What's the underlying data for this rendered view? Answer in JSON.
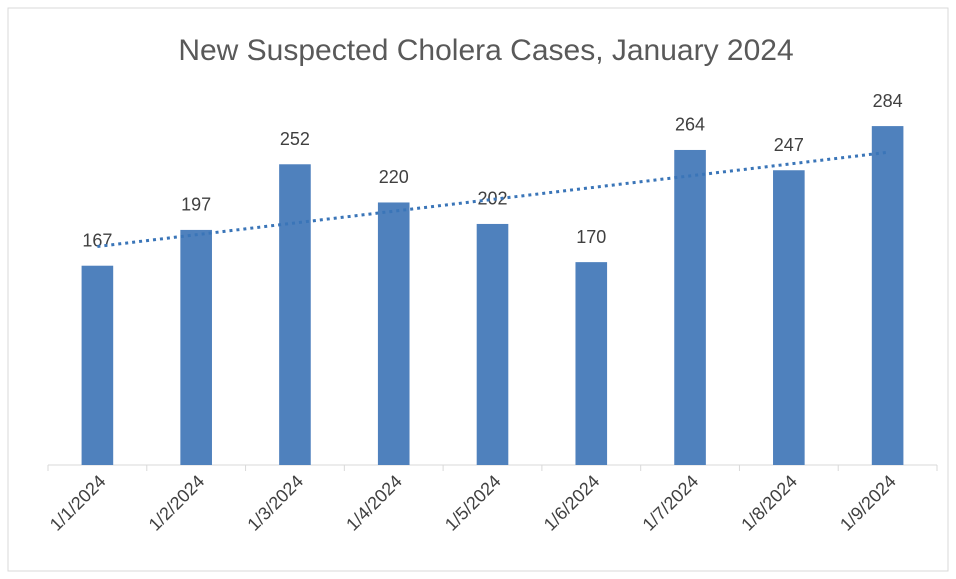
{
  "chart_data": {
    "type": "bar",
    "title": "New Suspected Cholera Cases, January 2024",
    "categories": [
      "1/1/2024",
      "1/2/2024",
      "1/3/2024",
      "1/4/2024",
      "1/5/2024",
      "1/6/2024",
      "1/7/2024",
      "1/8/2024",
      "1/9/2024"
    ],
    "values": [
      167,
      197,
      252,
      220,
      202,
      170,
      264,
      247,
      284
    ],
    "color": "#4f81bd",
    "ylim": [
      0,
      300
    ],
    "trendline": "linear",
    "trendline_color": "#3a75b8"
  }
}
